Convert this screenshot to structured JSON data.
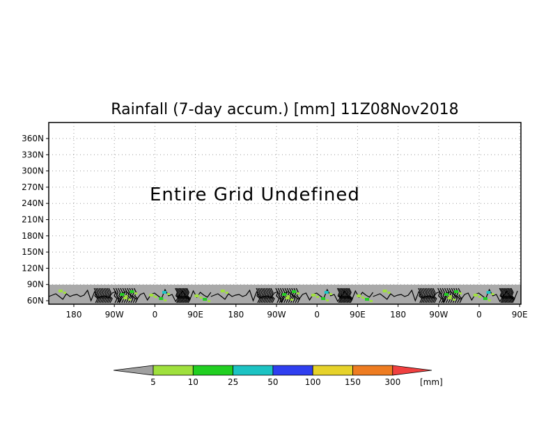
{
  "title": "Rainfall (7-day accum.) [mm] 11Z08Nov2018",
  "message": "Entire Grid Undefined",
  "y_axis": {
    "tick_labels": [
      "360N",
      "330N",
      "300N",
      "270N",
      "240N",
      "210N",
      "180N",
      "150N",
      "120N",
      "90N",
      "60N"
    ],
    "values": [
      360,
      330,
      300,
      270,
      240,
      210,
      180,
      150,
      120,
      90,
      60
    ]
  },
  "x_axis": {
    "tick_labels": [
      "180",
      "90W",
      "0",
      "90E",
      "180",
      "90W",
      "0",
      "90E",
      "180",
      "90W",
      "0",
      "90E"
    ]
  },
  "colorbar": {
    "thresholds": [
      "5",
      "10",
      "25",
      "50",
      "100",
      "150",
      "300"
    ],
    "unit": "[mm]",
    "colors": [
      "#a0a0a0",
      "#9fe03d",
      "#21cf21",
      "#1cc3c3",
      "#2f3ff0",
      "#e6d22a",
      "#ee7c21",
      "#f04040"
    ]
  },
  "land_color": "#a9a9a9",
  "grid": true
}
